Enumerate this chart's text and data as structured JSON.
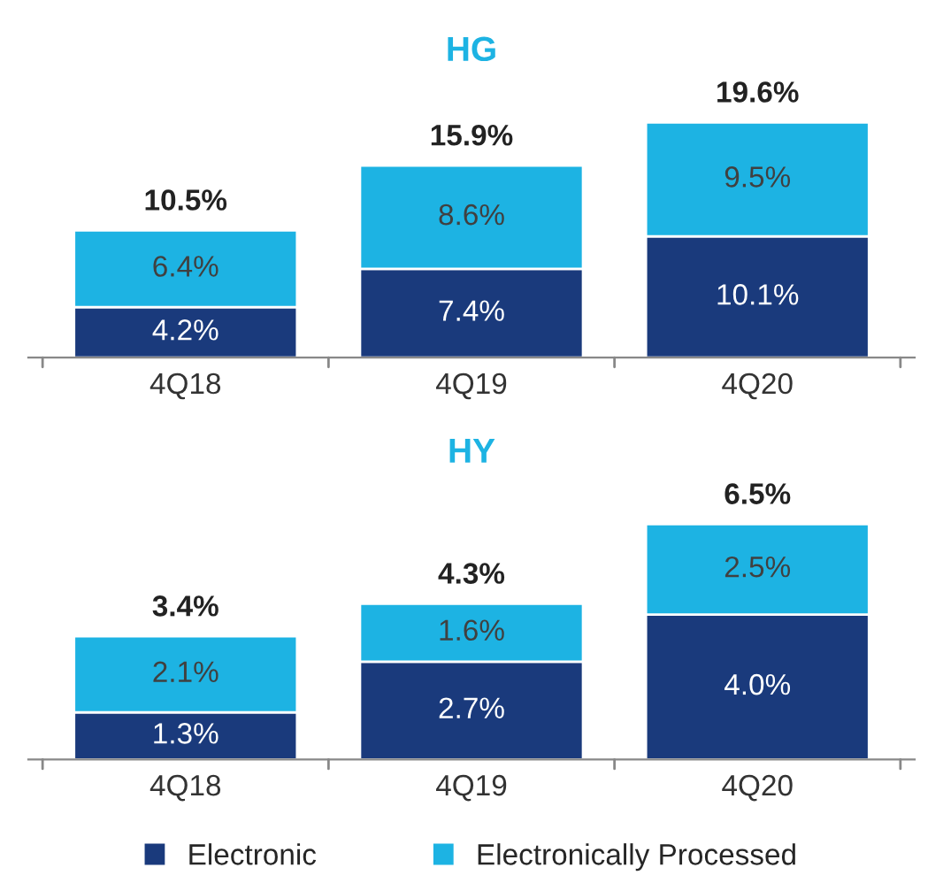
{
  "chart_data": [
    {
      "type": "bar",
      "title": "HG",
      "stacked": true,
      "categories": [
        "4Q18",
        "4Q19",
        "4Q20"
      ],
      "tick_labels": "x",
      "grid": false,
      "series": [
        {
          "color": "#1a3a7c",
          "values": [
            4.2,
            7.4,
            10.1
          ],
          "value_labels": [
            "4.2%",
            "7.4%",
            "10.1%"
          ]
        },
        {
          "color": "#1db3e3",
          "values": [
            6.4,
            8.6,
            9.5
          ],
          "value_labels": [
            "6.4%",
            "8.6%",
            "9.5%"
          ]
        }
      ],
      "totals": [
        "10.5%",
        "15.9%",
        "19.6%"
      ]
    },
    {
      "type": "bar",
      "title": "HY",
      "stacked": true,
      "categories": [
        "4Q18",
        "4Q19",
        "4Q20"
      ],
      "tick_labels": "x",
      "grid": false,
      "legend": "bottom",
      "series": [
        {
          "name": "Electronic",
          "color": "#1a3a7c",
          "values": [
            1.3,
            2.7,
            4.0
          ],
          "value_labels": [
            "1.3%",
            "2.7%",
            "4.0%"
          ]
        },
        {
          "name": "Electronically Processed",
          "color": "#1db3e3",
          "values": [
            2.1,
            1.6,
            2.5
          ],
          "value_labels": [
            "2.1%",
            "1.6%",
            "2.5%"
          ]
        }
      ],
      "totals": [
        "3.4%",
        "4.3%",
        "6.5%"
      ]
    }
  ]
}
